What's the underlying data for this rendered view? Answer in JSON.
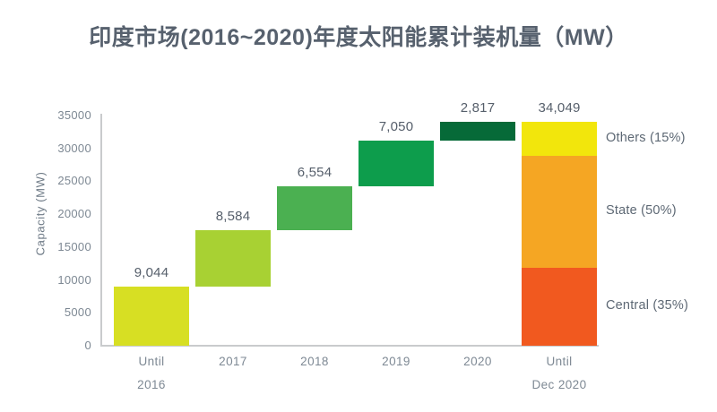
{
  "chart_data": {
    "type": "waterfall",
    "title": "印度市场(2016~2020)年度太阳能累计装机量（MW）",
    "xlabel": "",
    "ylabel": "Capacity (MW)",
    "ylim": [
      0,
      35000
    ],
    "ytick_step": 5000,
    "grid": false,
    "legend_position": "right",
    "colors": {
      "title_text": "#57616e",
      "axis_line": "#c9cbcd",
      "tick_text": "#7d8893",
      "value_text": "#565f6b",
      "legend_text": "#5d6874"
    },
    "bars": [
      {
        "label_lines": [
          "Until",
          "2016"
        ],
        "value": 9044,
        "display": "9,044",
        "start": 0,
        "end": 9044,
        "color": "#d7df23"
      },
      {
        "label_lines": [
          "2017"
        ],
        "value": 8584,
        "display": "8,584",
        "start": 9044,
        "end": 17628,
        "color": "#a8d133"
      },
      {
        "label_lines": [
          "2018"
        ],
        "value": 6554,
        "display": "6,554",
        "start": 17628,
        "end": 24182,
        "color": "#4bb051"
      },
      {
        "label_lines": [
          "2019"
        ],
        "value": 7050,
        "display": "7,050",
        "start": 24182,
        "end": 31232,
        "color": "#0d9d4c"
      },
      {
        "label_lines": [
          "2020"
        ],
        "value": 2817,
        "display": "2,817",
        "start": 31232,
        "end": 34049,
        "color": "#066a38"
      },
      {
        "label_lines": [
          "Until",
          "Dec 2020"
        ],
        "value": 34049,
        "display": "34,049",
        "start": 0,
        "end": 34049,
        "segments": [
          {
            "name": "central",
            "pct": 35,
            "label": "Central (35%)",
            "color": "#f1591f"
          },
          {
            "name": "state",
            "pct": 50,
            "label": "State (50%)",
            "color": "#f5a623"
          },
          {
            "name": "others",
            "pct": 15,
            "label": "Others (15%)",
            "color": "#f2e60c"
          }
        ]
      }
    ]
  }
}
